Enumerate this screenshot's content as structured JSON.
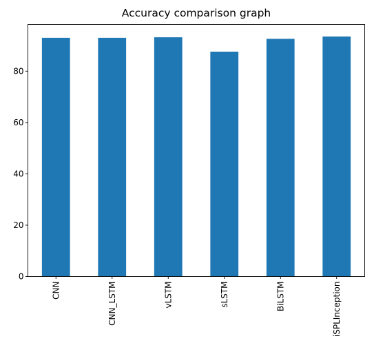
{
  "chart_data": {
    "type": "bar",
    "title": "Accuracy comparison graph",
    "xlabel": "",
    "ylabel": "",
    "categories": [
      "CNN",
      "CNN_LSTM",
      "vLSTM",
      "sLSTM",
      "BiLSTM",
      "iSPLInception"
    ],
    "values": [
      93.0,
      93.0,
      93.2,
      87.6,
      92.6,
      93.5
    ],
    "ylim": [
      0,
      98.2
    ],
    "yticks": [
      0,
      20,
      40,
      60,
      80
    ],
    "bar_color": "#1f77b4",
    "grid": false,
    "legend": "none"
  }
}
